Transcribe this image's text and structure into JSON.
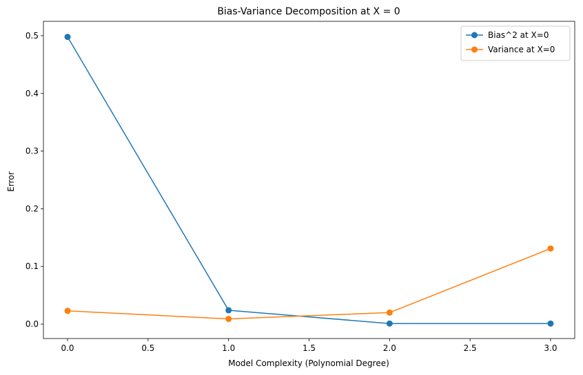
{
  "chart_data": {
    "type": "line",
    "title": "Bias-Variance Decomposition at X = 0",
    "xlabel": "Model Complexity (Polynomial Degree)",
    "ylabel": "Error",
    "xlim": [
      -0.15,
      3.15
    ],
    "ylim": [
      -0.025,
      0.525
    ],
    "xticks": [
      0.0,
      0.5,
      1.0,
      1.5,
      2.0,
      2.5,
      3.0
    ],
    "xtick_labels": [
      "0.0",
      "0.5",
      "1.0",
      "1.5",
      "2.0",
      "2.5",
      "3.0"
    ],
    "yticks": [
      0.0,
      0.1,
      0.2,
      0.3,
      0.4,
      0.5
    ],
    "ytick_labels": [
      "0.0",
      "0.1",
      "0.2",
      "0.3",
      "0.4",
      "0.5"
    ],
    "grid": false,
    "legend_position": "top-right",
    "x": [
      0,
      1,
      2,
      3
    ],
    "series": [
      {
        "name": "Bias^2 at X=0",
        "values": [
          0.498,
          0.024,
          0.001,
          0.001
        ],
        "color": "#1f77b4"
      },
      {
        "name": "Variance at X=0",
        "values": [
          0.023,
          0.009,
          0.02,
          0.131
        ],
        "color": "#ff7f0e"
      }
    ]
  }
}
